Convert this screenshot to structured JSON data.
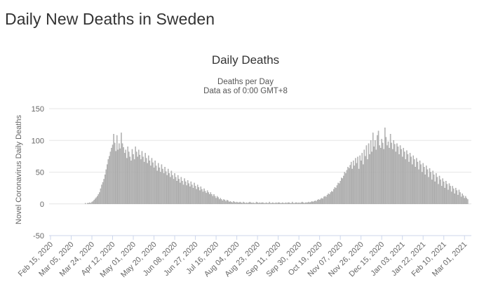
{
  "page": {
    "title": "Daily New Deaths in Sweden"
  },
  "chart_data": {
    "type": "bar",
    "title": "Daily Deaths",
    "subtitle": [
      "Deaths per Day",
      "Data as of 0:00 GMT+8"
    ],
    "ylabel": "Novel Coronavirus Daily Deaths",
    "xlabel": "",
    "ylim": [
      -50,
      150
    ],
    "yticks": [
      150,
      100,
      50,
      0,
      -50
    ],
    "grid": true,
    "legend": "none",
    "colors": {
      "bar": "#bdbdbd",
      "bar_edge": "#999999",
      "grid": "#e6e6e6",
      "axis": "#ccd6eb"
    },
    "x_start": "Feb 15, 2020",
    "x_end": "Mar 06, 2021",
    "xtick_labels": [
      "Feb 15, 2020",
      "Mar 05, 2020",
      "Mar 24, 2020",
      "Apr 12, 2020",
      "May 01, 2020",
      "May 20, 2020",
      "Jun 08, 2020",
      "Jun 27, 2020",
      "Jul 16, 2020",
      "Aug 04, 2020",
      "Aug 23, 2020",
      "Sep 11, 2020",
      "Sep 30, 2020",
      "Oct 19, 2020",
      "Nov 07, 2020",
      "Nov 26, 2020",
      "Dec 15, 2020",
      "Jan 03, 2021",
      "Jan 22, 2021",
      "Feb 10, 2021",
      "Mar 01, 2021"
    ],
    "values": [
      0,
      0,
      0,
      0,
      0,
      0,
      0,
      0,
      0,
      0,
      0,
      0,
      0,
      0,
      0,
      0,
      0,
      0,
      0,
      0,
      0,
      0,
      0,
      0,
      0,
      0,
      0,
      0,
      0,
      0,
      0,
      0,
      1,
      0,
      1,
      1,
      2,
      1,
      3,
      4,
      6,
      8,
      10,
      12,
      15,
      18,
      24,
      30,
      34,
      39,
      46,
      54,
      62,
      70,
      75,
      82,
      88,
      93,
      110,
      96,
      83,
      108,
      85,
      95,
      87,
      112,
      95,
      89,
      80,
      85,
      72,
      90,
      82,
      74,
      68,
      86,
      78,
      70,
      90,
      82,
      74,
      85,
      77,
      70,
      83,
      74,
      66,
      80,
      72,
      64,
      76,
      68,
      60,
      72,
      65,
      57,
      68,
      60,
      52,
      64,
      57,
      50,
      62,
      55,
      48,
      58,
      51,
      45,
      55,
      48,
      42,
      52,
      45,
      39,
      48,
      42,
      36,
      45,
      39,
      33,
      42,
      36,
      30,
      40,
      35,
      29,
      37,
      32,
      27,
      35,
      30,
      25,
      33,
      28,
      23,
      30,
      26,
      21,
      27,
      23,
      19,
      24,
      20,
      17,
      21,
      18,
      15,
      18,
      15,
      12,
      15,
      12,
      9,
      12,
      10,
      7,
      9,
      7,
      5,
      7,
      6,
      4,
      6,
      5,
      3,
      4,
      3,
      2,
      4,
      3,
      2,
      3,
      2,
      2,
      3,
      2,
      1,
      3,
      2,
      1,
      2,
      1,
      2,
      3,
      2,
      1,
      2,
      1,
      1,
      3,
      2,
      1,
      2,
      1,
      2,
      2,
      1,
      1,
      2,
      1,
      1,
      3,
      1,
      1,
      2,
      1,
      1,
      2,
      1,
      2,
      2,
      1,
      1,
      2,
      1,
      1,
      2,
      1,
      2,
      2,
      1,
      1,
      3,
      1,
      1,
      2,
      2,
      1,
      2,
      1,
      2,
      3,
      2,
      1,
      2,
      2,
      2,
      3,
      2,
      3,
      4,
      3,
      4,
      5,
      4,
      6,
      7,
      6,
      8,
      9,
      8,
      11,
      12,
      11,
      14,
      16,
      15,
      18,
      20,
      19,
      23,
      26,
      25,
      29,
      33,
      32,
      36,
      41,
      40,
      44,
      50,
      48,
      53,
      58,
      56,
      61,
      66,
      55,
      68,
      60,
      72,
      64,
      74,
      55,
      76,
      68,
      80,
      62,
      85,
      75,
      92,
      70,
      95,
      78,
      100,
      82,
      112,
      90,
      100,
      85,
      108,
      115,
      92,
      88,
      102,
      96,
      86,
      120,
      105,
      92,
      98,
      88,
      110,
      96,
      86,
      100,
      94,
      82,
      95,
      90,
      78,
      92,
      86,
      74,
      88,
      82,
      70,
      84,
      78,
      66,
      80,
      74,
      62,
      76,
      70,
      58,
      72,
      66,
      54,
      68,
      62,
      50,
      64,
      58,
      46,
      60,
      54,
      42,
      56,
      50,
      38,
      52,
      46,
      35,
      48,
      42,
      31,
      44,
      38,
      28,
      40,
      35,
      25,
      36,
      31,
      22,
      32,
      28,
      19,
      28,
      24,
      16,
      25,
      21,
      14,
      22,
      18,
      11,
      16,
      13,
      9,
      12,
      9,
      7
    ]
  }
}
